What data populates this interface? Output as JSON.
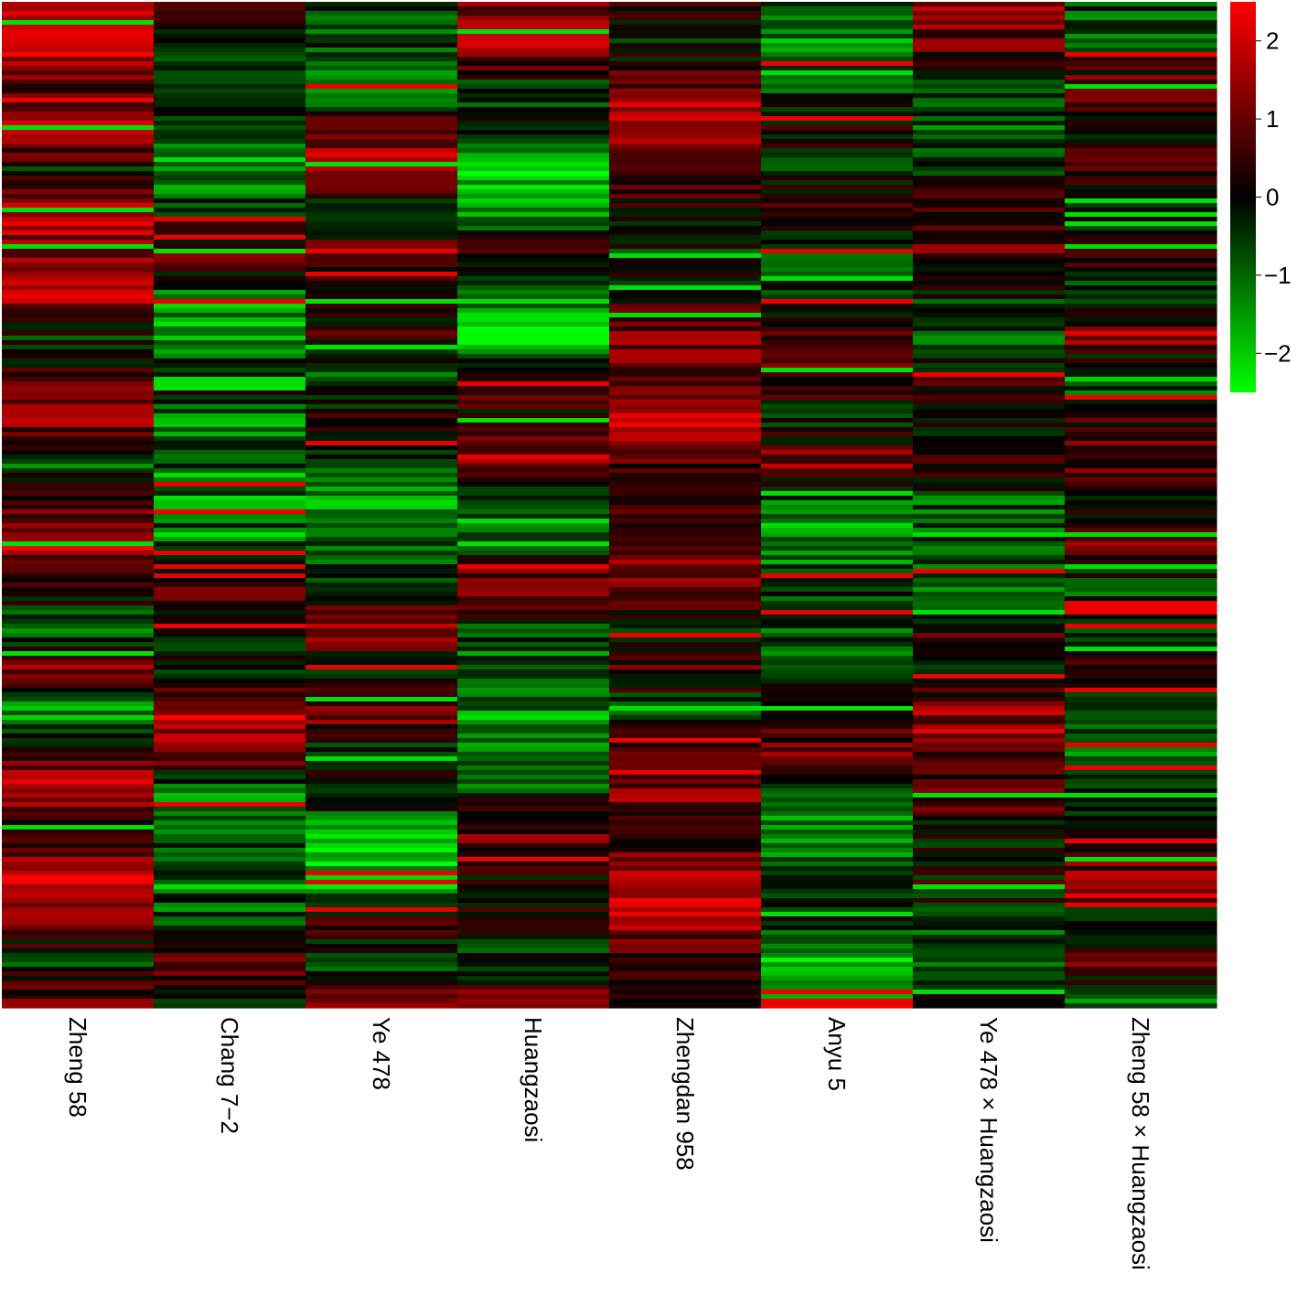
{
  "chart_data": {
    "type": "heatmap",
    "title": "",
    "xlabel": "",
    "ylabel": "",
    "columns": [
      "Zheng 58",
      "Chang 7−2",
      "Ye 478",
      "Huangzaosi",
      "Zhengdan 958",
      "Anyu 5",
      "Ye 478 × Huangzaosi",
      "Zheng 58 × Huangzaosi"
    ],
    "row_count": 220,
    "color_scale": {
      "min": -2.5,
      "max": 2.5,
      "low_color": "#00ff00",
      "mid_color": "#000000",
      "high_color": "#ff0000",
      "ticks": [
        2,
        1,
        0,
        -1,
        -2
      ],
      "tick_labels": [
        "2",
        "1",
        "0",
        "−1",
        "−2"
      ]
    },
    "column_profiles": [
      [
        1.5,
        2.2,
        0.8,
        1.9,
        -0.2,
        1.8,
        1.2,
        2.0,
        -0.5,
        0.9,
        1.3,
        -0.8,
        0.6,
        1.7,
        0.3,
        -1.2,
        1.4,
        -1.6,
        0.9,
        1.6,
        0.4,
        2.3,
        1.1,
        -0.4,
        1.2
      ],
      [
        0.5,
        -0.3,
        -0.2,
        -0.9,
        -1.4,
        -0.6,
        1.0,
        -1.2,
        -1.8,
        0.4,
        -1.4,
        -0.5,
        -1.1,
        -0.9,
        1.0,
        0.1,
        -0.7,
        1.9,
        1.3,
        -1.3,
        -0.9,
        -0.6,
        -1.0,
        1.2,
        -0.8
      ],
      [
        -0.8,
        -0.5,
        -2.0,
        1.2,
        1.5,
        -0.6,
        0.9,
        -0.3,
        0.7,
        -0.8,
        0.2,
        -0.4,
        -1.5,
        -0.9,
        -0.6,
        1.6,
        -1.0,
        1.4,
        -0.6,
        0.1,
        -2.1,
        -1.9,
        0.6,
        -0.7,
        1.8
      ],
      [
        1.1,
        1.9,
        -0.7,
        -0.2,
        -1.8,
        -1.4,
        0.8,
        -1.2,
        -2.1,
        0.6,
        0.3,
        1.1,
        -0.6,
        -0.9,
        1.7,
        -0.8,
        -1.0,
        -1.3,
        -1.6,
        -0.4,
        1.0,
        0.3,
        0.2,
        -0.6,
        1.5
      ],
      [
        0.2,
        -0.4,
        1.2,
        1.8,
        0.9,
        0.4,
        -0.3,
        0.2,
        1.3,
        0.7,
        1.9,
        0.8,
        0.5,
        1.0,
        1.4,
        -0.3,
        0.7,
        -0.8,
        1.1,
        1.3,
        0.2,
        2.1,
        1.6,
        0.4,
        -0.2
      ],
      [
        -1.0,
        -1.3,
        -0.8,
        0.4,
        -0.5,
        0.6,
        -1.0,
        -0.3,
        1.0,
        0.9,
        -0.6,
        1.4,
        -1.2,
        -1.5,
        -0.4,
        -0.9,
        -0.6,
        -0.2,
        1.2,
        -0.8,
        -1.4,
        -0.3,
        -0.6,
        -1.8,
        -0.7
      ],
      [
        1.6,
        0.9,
        -0.6,
        -1.0,
        -0.4,
        0.6,
        1.0,
        -0.3,
        -0.8,
        0.5,
        -0.2,
        0.3,
        -0.9,
        -0.5,
        -1.0,
        0.6,
        -0.7,
        1.6,
        0.3,
        0.9,
        -0.2,
        0.1,
        -0.6,
        -0.9,
        0.4
      ],
      [
        -0.6,
        -1.1,
        1.4,
        -0.5,
        0.8,
        -0.7,
        0.6,
        -0.9,
        1.5,
        -1.3,
        0.4,
        0.9,
        -0.5,
        1.2,
        -0.8,
        -0.4,
        0.3,
        -0.6,
        -0.9,
        -0.5,
        0.2,
        1.4,
        -0.6,
        1.1,
        -1.2
      ]
    ]
  }
}
